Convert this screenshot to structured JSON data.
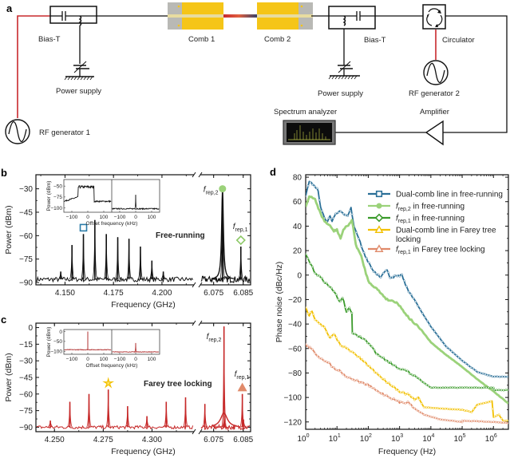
{
  "panel_labels": {
    "a": "a",
    "b": "b",
    "c": "c",
    "d": "d"
  },
  "schematic": {
    "components": {
      "bias_t_1": "Bias-T",
      "bias_t_2": "Bias-T",
      "comb_1": "Comb 1",
      "comb_2": "Comb 2",
      "power_supply_1": "Power supply",
      "power_supply_2": "Power supply",
      "rf_generator_1": "RF generator 1",
      "rf_generator_2": "RF generator 2",
      "circulator": "Circulator",
      "amplifier": "Amplifier",
      "spectrum_analyzer": "Spectrum analyzer"
    },
    "colors": {
      "rf_line": "#c8282d",
      "comb": "#f5c518",
      "wire": "#111111"
    }
  },
  "chart_data": [
    {
      "id": "b",
      "type": "line",
      "title": "",
      "annotation": "Free-running",
      "annotation_color": "#111111",
      "xlabel": "Frequency (GHz)",
      "ylabel": "Power (dBm)",
      "color": "#111111",
      "broken_axis": true,
      "segments": [
        {
          "xlim": [
            4.135,
            4.2165
          ],
          "xticks": [
            4.15,
            4.175,
            4.2
          ],
          "xtick_labels": [
            "4.150",
            "4.175",
            "4.200"
          ]
        },
        {
          "xlim": [
            6.0705,
            6.0875
          ],
          "xticks": [
            6.075,
            6.085
          ],
          "xtick_labels": [
            "6.075",
            "6.085"
          ]
        }
      ],
      "ylim": [
        -91.5,
        -21
      ],
      "yticks": [
        -30,
        -45,
        -60,
        -75,
        -90
      ],
      "ytick_labels": [
        "−30",
        "−45",
        "−60",
        "−75",
        "−90"
      ],
      "noise_floor": -88,
      "peaks": [
        {
          "x": 4.1478,
          "y": -83
        },
        {
          "x": 4.1536,
          "y": -66
        },
        {
          "x": 4.1595,
          "y": -59,
          "marker": "square",
          "marker_color": "#2a7ba8"
        },
        {
          "x": 4.1654,
          "y": -50
        },
        {
          "x": 4.1713,
          "y": -59
        },
        {
          "x": 4.1772,
          "y": -61
        },
        {
          "x": 4.183,
          "y": -62
        },
        {
          "x": 4.1889,
          "y": -67
        },
        {
          "x": 4.1948,
          "y": -76
        },
        {
          "x": 4.2007,
          "y": -83
        },
        {
          "x": 6.078,
          "y": -30,
          "label": "f_rep,2",
          "marker": "circle",
          "marker_color": "#9bd27a",
          "broad": true
        },
        {
          "x": 6.0842,
          "y": -67,
          "label": "f_rep,1",
          "marker": "diamond",
          "marker_color": "#8cc866"
        }
      ],
      "inset": {
        "ylabel": "Power (dBm)",
        "xlabel": "Offset frequency (kHz)",
        "yticks": [
          -50,
          -75,
          -100
        ],
        "ytick_labels": [
          "−50",
          "−75",
          "−100"
        ],
        "ylim": [
          -110,
          -35
        ],
        "xticks": [
          -100,
          0,
          100
        ],
        "xtick_labels": [
          "−100",
          "0",
          "100"
        ],
        "xlim": [
          -150,
          150
        ],
        "left": {
          "floor_edge": -85,
          "plateau": -52,
          "plateau_range": [
            -60,
            40
          ]
        },
        "right": {
          "floor": -102,
          "peak": -70
        }
      }
    },
    {
      "id": "c",
      "type": "line",
      "title": "",
      "annotation": "Farey tree locking",
      "annotation_color": "#c62828",
      "xlabel": "Frequency (GHz)",
      "ylabel": "Power (dBm)",
      "color": "#c62828",
      "broken_axis": true,
      "segments": [
        {
          "xlim": [
            4.2405,
            4.3215
          ],
          "xticks": [
            4.25,
            4.275,
            4.3
          ],
          "xtick_labels": [
            "4.250",
            "4.275",
            "4.300"
          ]
        },
        {
          "xlim": [
            6.0705,
            6.0875
          ],
          "xticks": [
            6.075,
            6.085
          ],
          "xtick_labels": [
            "6.075",
            "6.085"
          ]
        }
      ],
      "ylim": [
        -94,
        4
      ],
      "yticks": [
        0,
        -15,
        -30,
        -45,
        -60,
        -75,
        -90
      ],
      "ytick_labels": [
        "0",
        "−15",
        "−30",
        "−45",
        "−60",
        "−75",
        "−90"
      ],
      "noise_floor": -90,
      "peaks": [
        {
          "x": 4.2479,
          "y": -84
        },
        {
          "x": 4.2579,
          "y": -67
        },
        {
          "x": 4.2677,
          "y": -60
        },
        {
          "x": 4.2776,
          "y": -56,
          "marker": "star",
          "marker_color": "#f2c000"
        },
        {
          "x": 4.2875,
          "y": -71
        },
        {
          "x": 4.2974,
          "y": -80
        },
        {
          "x": 4.3073,
          "y": -67
        },
        {
          "x": 4.3172,
          "y": -63
        },
        {
          "x": 4.3271,
          "y": -69
        },
        {
          "x": 4.337,
          "y": -80
        },
        {
          "x": 4.3469,
          "y": -83
        },
        {
          "x": 6.0785,
          "y": 1,
          "label": "f_rep,2",
          "broad": true,
          "pedestal": -77
        },
        {
          "x": 6.0847,
          "y": -60,
          "label": "f_rep,1",
          "marker": "triangle",
          "marker_color": "#e08a6a"
        }
      ],
      "inset": {
        "ylabel": "Power (dBm)",
        "xlabel": "Offset frequency (kHz)",
        "yticks": [
          0,
          -50,
          -100
        ],
        "ytick_labels": [
          "0",
          "−50",
          "−100"
        ],
        "ylim": [
          -115,
          10
        ],
        "xticks": [
          -100,
          0,
          100
        ],
        "xtick_labels": [
          "−100",
          "0",
          "100"
        ],
        "xlim": [
          -150,
          150
        ],
        "left": {
          "floor": -92,
          "peak": 0
        },
        "right": {
          "floor": -103,
          "peak": -58
        }
      }
    },
    {
      "id": "d",
      "type": "line",
      "title": "",
      "xlabel": "Frequency (Hz)",
      "ylabel": "Phase noise (dBc/Hz)",
      "xscale": "log",
      "xlim": [
        1,
        3000000
      ],
      "ylim": [
        -126,
        82
      ],
      "xticks": [
        1,
        10,
        100,
        1000,
        10000,
        100000,
        1000000
      ],
      "xtick_labels": [
        "10^0",
        "10^1",
        "10^2",
        "10^3",
        "10^4",
        "10^5",
        "10^6"
      ],
      "yticks": [
        80,
        60,
        40,
        20,
        0,
        -20,
        -40,
        -60,
        -80,
        -100,
        -120
      ],
      "ytick_labels": [
        "80",
        "60",
        "40",
        "20",
        "0",
        "−20",
        "−40",
        "−60",
        "−80",
        "−100",
        "−120"
      ],
      "legend_position": "top-right",
      "series": [
        {
          "name": "Dual-comb line in free-running",
          "color": "#2a6f97",
          "marker": "square",
          "points": [
            [
              1,
              65
            ],
            [
              1.3,
              76
            ],
            [
              1.8,
              74
            ],
            [
              2.5,
              69
            ],
            [
              3,
              55
            ],
            [
              4,
              47
            ],
            [
              5,
              43
            ],
            [
              6,
              49
            ],
            [
              7,
              44
            ],
            [
              9,
              50
            ],
            [
              12,
              52
            ],
            [
              16,
              50
            ],
            [
              22,
              49
            ],
            [
              28,
              55
            ],
            [
              35,
              40
            ],
            [
              50,
              30
            ],
            [
              80,
              15
            ],
            [
              150,
              3
            ],
            [
              250,
              -2
            ],
            [
              400,
              5
            ],
            [
              500,
              -3
            ],
            [
              700,
              -1
            ],
            [
              1200,
              0
            ],
            [
              1800,
              -12
            ],
            [
              3000,
              -20
            ],
            [
              5000,
              -30
            ],
            [
              10000,
              -42
            ],
            [
              30000,
              -58
            ],
            [
              100000,
              -70
            ],
            [
              300000,
              -79
            ],
            [
              1000000,
              -83
            ],
            [
              3000000,
              -83
            ]
          ]
        },
        {
          "name": "f_rep,2 in free-running",
          "color": "#9bd27a",
          "marker": "circle",
          "points": [
            [
              1,
              56
            ],
            [
              1.3,
              64
            ],
            [
              2,
              62
            ],
            [
              3,
              50
            ],
            [
              4,
              44
            ],
            [
              6,
              40
            ],
            [
              8,
              36
            ],
            [
              10,
              37
            ],
            [
              13,
              30
            ],
            [
              16,
              37
            ],
            [
              25,
              42
            ],
            [
              30,
              45
            ],
            [
              40,
              25
            ],
            [
              60,
              15
            ],
            [
              100,
              -5
            ],
            [
              200,
              -12
            ],
            [
              400,
              -20
            ],
            [
              800,
              -22
            ],
            [
              2000,
              -35
            ],
            [
              5000,
              -45
            ],
            [
              10000,
              -55
            ],
            [
              30000,
              -65
            ],
            [
              100000,
              -75
            ],
            [
              300000,
              -85
            ],
            [
              1000000,
              -95
            ],
            [
              3000000,
              -105
            ]
          ]
        },
        {
          "name": "f_rep,1 in free-running",
          "color": "#3a9a2a",
          "marker": "diamond",
          "points": [
            [
              1,
              17
            ],
            [
              1.5,
              8
            ],
            [
              2,
              2
            ],
            [
              3,
              -2
            ],
            [
              5,
              -8
            ],
            [
              8,
              -13
            ],
            [
              12,
              -22
            ],
            [
              15,
              -18
            ],
            [
              20,
              -30
            ],
            [
              25,
              -27
            ],
            [
              30,
              -31
            ],
            [
              31,
              -48
            ],
            [
              50,
              -50
            ],
            [
              80,
              -53
            ],
            [
              120,
              -58
            ],
            [
              200,
              -65
            ],
            [
              400,
              -70
            ],
            [
              800,
              -75
            ],
            [
              1500,
              -78
            ],
            [
              3000,
              -82
            ],
            [
              6000,
              -88
            ],
            [
              10000,
              -92
            ],
            [
              100000,
              -92
            ],
            [
              1000000,
              -92
            ],
            [
              1050000,
              -94
            ],
            [
              3000000,
              -94
            ]
          ]
        },
        {
          "name": "Dual-comb line in Farey tree locking",
          "color": "#f2c000",
          "marker": "triangle",
          "points": [
            [
              1,
              -27
            ],
            [
              1.3,
              -33
            ],
            [
              1.6,
              -29
            ],
            [
              2,
              -36
            ],
            [
              3,
              -40
            ],
            [
              4,
              -43
            ],
            [
              6,
              -52
            ],
            [
              8,
              -48
            ],
            [
              12,
              -56
            ],
            [
              20,
              -60
            ],
            [
              40,
              -65
            ],
            [
              100,
              -74
            ],
            [
              300,
              -85
            ],
            [
              1000,
              -95
            ],
            [
              2000,
              -98
            ],
            [
              3000,
              -102
            ],
            [
              4000,
              -100
            ],
            [
              6000,
              -108
            ],
            [
              20000,
              -109
            ],
            [
              100000,
              -110
            ],
            [
              200000,
              -112
            ],
            [
              300000,
              -106
            ],
            [
              900000,
              -103
            ],
            [
              1000000,
              -116
            ],
            [
              1500000,
              -114
            ],
            [
              2000000,
              -119
            ],
            [
              3000000,
              -119
            ]
          ]
        },
        {
          "name": "f_rep,1 in Farey tree locking",
          "color": "#e08a6a",
          "marker": "triangle-open",
          "points": [
            [
              1,
              -57
            ],
            [
              1.5,
              -60
            ],
            [
              2,
              -64
            ],
            [
              3,
              -68
            ],
            [
              5,
              -71
            ],
            [
              8,
              -76
            ],
            [
              12,
              -78
            ],
            [
              20,
              -83
            ],
            [
              40,
              -86
            ],
            [
              100,
              -90
            ],
            [
              200,
              -95
            ],
            [
              500,
              -100
            ],
            [
              1000,
              -104
            ],
            [
              2000,
              -104
            ],
            [
              3000,
              -109
            ],
            [
              6000,
              -114
            ],
            [
              20000,
              -118
            ],
            [
              100000,
              -120
            ],
            [
              100001,
              -119
            ],
            [
              1000000,
              -120
            ],
            [
              3000000,
              -121
            ]
          ]
        }
      ]
    }
  ]
}
